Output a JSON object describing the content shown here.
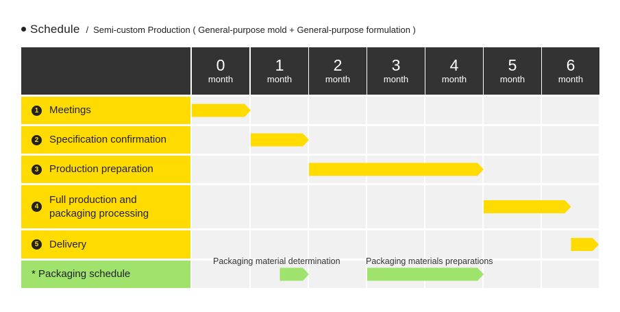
{
  "title": {
    "main": "Schedule",
    "separator": "/",
    "subtitle": "Semi-custom Production ( General-purpose mold  + General-purpose formulation  )"
  },
  "months": [
    {
      "number": "0",
      "unit": "month"
    },
    {
      "number": "1",
      "unit": "month"
    },
    {
      "number": "2",
      "unit": "month"
    },
    {
      "number": "3",
      "unit": "month"
    },
    {
      "number": "4",
      "unit": "month"
    },
    {
      "number": "5",
      "unit": "month"
    },
    {
      "number": "6",
      "unit": "month"
    }
  ],
  "tasks": [
    {
      "badge": "1",
      "label": "Meetings",
      "start_month": 0,
      "end_month": 1
    },
    {
      "badge": "2",
      "label": "Specification confirmation",
      "start_month": 1,
      "end_month": 2
    },
    {
      "badge": "3",
      "label": "Production preparation",
      "start_month": 2,
      "end_month": 5
    },
    {
      "badge": "4",
      "label_line1": "Full production and",
      "label_line2": "packaging processing",
      "start_month": 5,
      "end_month": 6.5
    },
    {
      "badge": "5",
      "label": "Delivery",
      "start_month": 6.5,
      "end_month": 7
    }
  ],
  "packaging": {
    "label": "* Packaging schedule",
    "notes": [
      {
        "text": "Packaging material determination",
        "start_month": 1.5,
        "end_month": 2
      },
      {
        "text": "Packaging materials preparations",
        "start_month": 3,
        "end_month": 5
      }
    ]
  },
  "colors": {
    "header_bg": "#333333",
    "task_yellow": "#ffdb00",
    "packaging_green": "#9fe26c",
    "cell_gray": "#f1f1f1"
  }
}
